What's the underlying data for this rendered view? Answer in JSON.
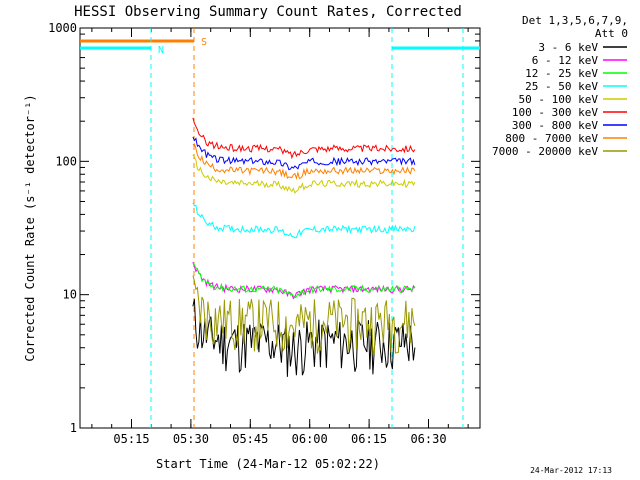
{
  "chart_data": {
    "type": "line",
    "title": "HESSI Observing Summary Count Rates, Corrected",
    "xlabel": "Start Time (24-Mar-12 05:02:22)",
    "ylabel": "Corrected Count Rate (s⁻¹ detector⁻¹)",
    "y_scale": "log",
    "ylim": [
      1,
      1000
    ],
    "xlim_minutes_axis": [
      "05:02",
      "06:43"
    ],
    "x_ticks": [
      "05:15",
      "05:30",
      "05:45",
      "06:00",
      "06:15",
      "06:30"
    ],
    "y_ticks": [
      "1",
      "10",
      "100",
      "1000"
    ],
    "legend_header": [
      "Det 1,3,5,6,7,9,",
      "Att 0"
    ],
    "legend_position": "right",
    "markers": [
      {
        "label": "N",
        "kind": "night",
        "color": "#00ffff"
      },
      {
        "label": "S",
        "kind": "saa",
        "color": "#ff8000"
      }
    ],
    "timestamp": "24-Mar-2012 17:13",
    "series": [
      {
        "name": "3 - 6 keV",
        "color": "#000000",
        "approx_level": 4.5,
        "t": [
          "05:30",
          "06:25"
        ]
      },
      {
        "name": "6 - 12 keV",
        "color": "#ff00ff",
        "approx_level": 11,
        "t": [
          "05:30",
          "06:25"
        ]
      },
      {
        "name": "12 - 25 keV",
        "color": "#00ff00",
        "approx_level": 11,
        "t": [
          "05:30",
          "06:25"
        ]
      },
      {
        "name": "25 - 50 keV",
        "color": "#00ffff",
        "approx_level": 31,
        "t": [
          "05:30",
          "06:25"
        ]
      },
      {
        "name": "50 - 100 keV",
        "color": "#cccc00",
        "approx_level": 68,
        "t": [
          "05:30",
          "06:25"
        ]
      },
      {
        "name": "100 - 300 keV",
        "color": "#ff0000",
        "approx_level": 125,
        "t": [
          "05:30",
          "06:25"
        ]
      },
      {
        "name": "300 - 800 keV",
        "color": "#0000ff",
        "approx_level": 100,
        "t": [
          "05:30",
          "06:25"
        ]
      },
      {
        "name": "800 - 7000 keV",
        "color": "#ff8000",
        "approx_level": 85,
        "t": [
          "05:30",
          "06:25"
        ]
      },
      {
        "name": "7000 - 20000 keV",
        "color": "#999900",
        "approx_level": 6.5,
        "t": [
          "05:30",
          "06:25"
        ]
      }
    ]
  }
}
